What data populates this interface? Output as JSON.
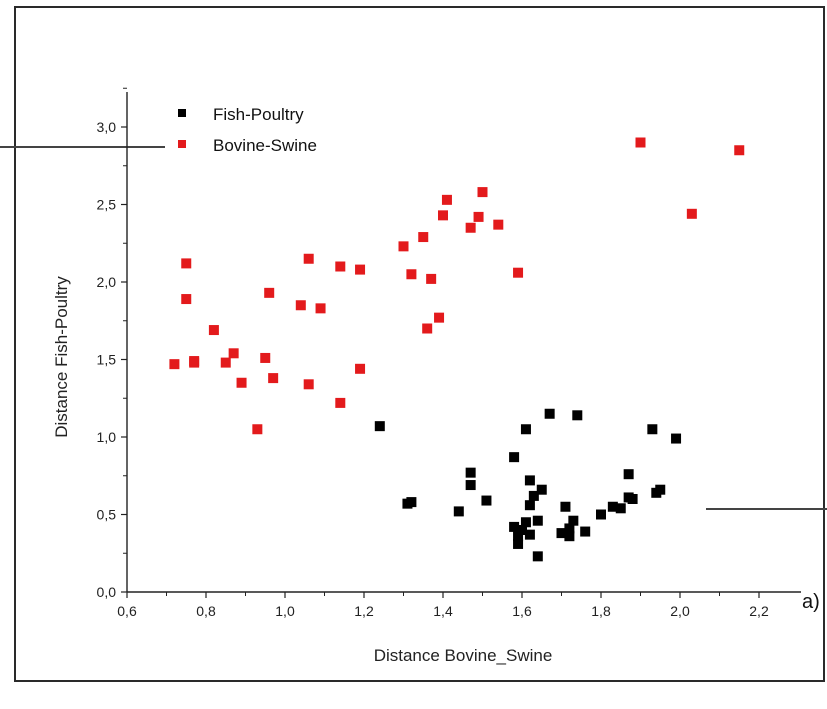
{
  "chart_data": {
    "type": "scatter",
    "panel_label": "a)",
    "xlabel": "Distance Bovine_Swine",
    "ylabel": "Distance Fish-Poultry",
    "xlim": [
      0.6,
      2.3
    ],
    "ylim": [
      0.0,
      3.25
    ],
    "xticks": [
      "0,6",
      "0,8",
      "1,0",
      "1,2",
      "1,4",
      "1,6",
      "1,8",
      "2,0",
      "2,2"
    ],
    "yticks": [
      "0,0",
      "0,5",
      "1,0",
      "1,5",
      "2,0",
      "2,5",
      "3,0"
    ],
    "grid": false,
    "legend_position": "top-left",
    "series": [
      {
        "name": "Fish-Poultry",
        "color": "#000000",
        "points": [
          [
            1.24,
            1.07
          ],
          [
            1.31,
            0.57
          ],
          [
            1.32,
            0.58
          ],
          [
            1.44,
            0.52
          ],
          [
            1.47,
            0.69
          ],
          [
            1.47,
            0.77
          ],
          [
            1.51,
            0.59
          ],
          [
            1.58,
            0.87
          ],
          [
            1.58,
            0.42
          ],
          [
            1.59,
            0.36
          ],
          [
            1.59,
            0.31
          ],
          [
            1.6,
            0.4
          ],
          [
            1.61,
            0.45
          ],
          [
            1.61,
            1.05
          ],
          [
            1.62,
            0.72
          ],
          [
            1.62,
            0.56
          ],
          [
            1.62,
            0.37
          ],
          [
            1.63,
            0.62
          ],
          [
            1.64,
            0.46
          ],
          [
            1.64,
            0.23
          ],
          [
            1.65,
            0.66
          ],
          [
            1.67,
            1.15
          ],
          [
            1.7,
            0.38
          ],
          [
            1.71,
            0.55
          ],
          [
            1.72,
            0.41
          ],
          [
            1.72,
            0.36
          ],
          [
            1.73,
            0.46
          ],
          [
            1.74,
            1.14
          ],
          [
            1.76,
            0.39
          ],
          [
            1.8,
            0.5
          ],
          [
            1.83,
            0.55
          ],
          [
            1.85,
            0.54
          ],
          [
            1.87,
            0.61
          ],
          [
            1.87,
            0.76
          ],
          [
            1.88,
            0.6
          ],
          [
            1.93,
            1.05
          ],
          [
            1.94,
            0.64
          ],
          [
            1.95,
            0.66
          ],
          [
            1.99,
            0.99
          ]
        ]
      },
      {
        "name": "Bovine-Swine",
        "color": "#e31a1c",
        "points": [
          [
            0.72,
            1.47
          ],
          [
            0.75,
            2.12
          ],
          [
            0.75,
            1.89
          ],
          [
            0.77,
            1.48
          ],
          [
            0.77,
            1.49
          ],
          [
            0.82,
            1.69
          ],
          [
            0.85,
            1.48
          ],
          [
            0.87,
            1.54
          ],
          [
            0.89,
            1.35
          ],
          [
            0.93,
            1.05
          ],
          [
            0.95,
            1.51
          ],
          [
            0.96,
            1.93
          ],
          [
            0.97,
            1.38
          ],
          [
            1.04,
            1.85
          ],
          [
            1.06,
            2.15
          ],
          [
            1.06,
            1.34
          ],
          [
            1.09,
            1.83
          ],
          [
            1.14,
            2.1
          ],
          [
            1.14,
            1.22
          ],
          [
            1.19,
            2.08
          ],
          [
            1.19,
            1.44
          ],
          [
            1.3,
            2.23
          ],
          [
            1.32,
            2.05
          ],
          [
            1.35,
            2.29
          ],
          [
            1.36,
            1.7
          ],
          [
            1.37,
            2.02
          ],
          [
            1.39,
            1.77
          ],
          [
            1.4,
            2.43
          ],
          [
            1.41,
            2.53
          ],
          [
            1.47,
            2.35
          ],
          [
            1.49,
            2.42
          ],
          [
            1.5,
            2.58
          ],
          [
            1.54,
            2.37
          ],
          [
            1.59,
            2.06
          ],
          [
            1.9,
            2.9
          ],
          [
            2.03,
            2.44
          ],
          [
            2.15,
            2.85
          ]
        ]
      }
    ]
  }
}
